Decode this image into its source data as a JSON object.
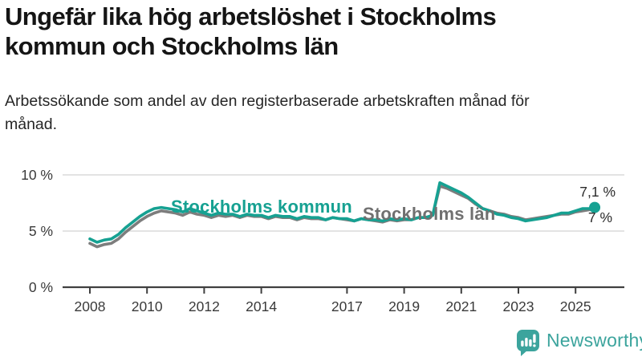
{
  "title": "Ungefär lika hög arbetslöshet i Stockholms kommun och Stockholms län",
  "subtitle": "Arbetssökande som andel av den registerbaserade arbetskraften månad för månad.",
  "branding": {
    "logo_text": "Newsworthy",
    "logo_icon": "bar-chart-speech-bubble-icon",
    "logo_color": "#3CA49D"
  },
  "colors": {
    "kommun_line": "#16A192",
    "lan_line": "#7D7D7D",
    "gridline": "#DADADA",
    "axis_line": "#404040",
    "tick_text": "#3A3A3A",
    "title_text": "#151515",
    "value_label_text": "#2b2b2b"
  },
  "chart_data": {
    "type": "line",
    "title": "Ungefär lika hög arbetslöshet i Stockholms kommun och Stockholms län",
    "subtitle": "Arbetssökande som andel av den registerbaserade arbetskraften månad för månad.",
    "xlabel": "",
    "ylabel": "",
    "ylim": [
      0,
      10
    ],
    "xlim": [
      2007.1,
      2026.7
    ],
    "grid": "horizontal",
    "legend_position": "inline-line-labels",
    "x_ticks": [
      2008,
      2010,
      2012,
      2014,
      2017,
      2019,
      2021,
      2023,
      2025
    ],
    "y_ticks": [
      {
        "value": 10,
        "label": "10 %"
      },
      {
        "value": 5,
        "label": "5 %"
      },
      {
        "value": 0,
        "label": "0 %"
      }
    ],
    "x": [
      2008.0,
      2008.25,
      2008.5,
      2008.75,
      2009.0,
      2009.25,
      2009.5,
      2009.75,
      2010.0,
      2010.25,
      2010.5,
      2010.75,
      2011.0,
      2011.25,
      2011.5,
      2011.75,
      2012.0,
      2012.25,
      2012.5,
      2012.75,
      2013.0,
      2013.25,
      2013.5,
      2013.75,
      2014.0,
      2014.25,
      2014.5,
      2014.75,
      2015.0,
      2015.25,
      2015.5,
      2015.75,
      2016.0,
      2016.25,
      2016.5,
      2016.75,
      2017.0,
      2017.25,
      2017.5,
      2017.75,
      2018.0,
      2018.25,
      2018.5,
      2018.75,
      2019.0,
      2019.25,
      2019.5,
      2019.75,
      2020.0,
      2020.25,
      2020.5,
      2020.75,
      2021.0,
      2021.25,
      2021.5,
      2021.75,
      2022.0,
      2022.25,
      2022.5,
      2022.75,
      2023.0,
      2023.25,
      2023.5,
      2023.75,
      2024.0,
      2024.25,
      2024.5,
      2024.75,
      2025.0,
      2025.25,
      2025.5,
      2025.67
    ],
    "series": [
      {
        "name": "Stockholms kommun",
        "color": "#16A192",
        "end_label": "7,1 %",
        "end_dot": true,
        "values": [
          4.3,
          4.0,
          4.2,
          4.3,
          4.7,
          5.3,
          5.8,
          6.3,
          6.7,
          7.0,
          7.1,
          7.0,
          6.9,
          6.7,
          7.0,
          6.8,
          6.6,
          6.4,
          6.6,
          6.5,
          6.5,
          6.3,
          6.5,
          6.4,
          6.4,
          6.2,
          6.4,
          6.3,
          6.3,
          6.1,
          6.3,
          6.2,
          6.2,
          6.0,
          6.2,
          6.1,
          6.1,
          5.9,
          6.1,
          6.0,
          6.0,
          5.9,
          6.1,
          6.0,
          6.1,
          6.0,
          6.2,
          6.2,
          6.4,
          9.3,
          9.0,
          8.7,
          8.4,
          8.0,
          7.5,
          7.0,
          6.8,
          6.5,
          6.4,
          6.2,
          6.1,
          5.9,
          6.0,
          6.1,
          6.2,
          6.4,
          6.6,
          6.6,
          6.8,
          7.0,
          7.0,
          7.1
        ]
      },
      {
        "name": "Stockholms län",
        "color": "#7D7D7D",
        "end_label": "7 %",
        "end_dot": false,
        "values": [
          3.9,
          3.6,
          3.8,
          3.9,
          4.3,
          4.9,
          5.4,
          5.9,
          6.3,
          6.6,
          6.8,
          6.7,
          6.6,
          6.4,
          6.7,
          6.5,
          6.4,
          6.2,
          6.4,
          6.3,
          6.4,
          6.2,
          6.4,
          6.3,
          6.3,
          6.1,
          6.3,
          6.2,
          6.2,
          6.0,
          6.2,
          6.1,
          6.1,
          6.0,
          6.2,
          6.1,
          6.0,
          5.9,
          6.1,
          6.0,
          5.9,
          5.8,
          6.0,
          5.9,
          6.0,
          6.0,
          6.2,
          6.2,
          6.4,
          9.0,
          8.8,
          8.5,
          8.2,
          7.9,
          7.4,
          7.0,
          6.8,
          6.6,
          6.5,
          6.3,
          6.2,
          6.0,
          6.1,
          6.2,
          6.3,
          6.4,
          6.5,
          6.5,
          6.7,
          6.8,
          6.9,
          7.0
        ]
      }
    ]
  }
}
